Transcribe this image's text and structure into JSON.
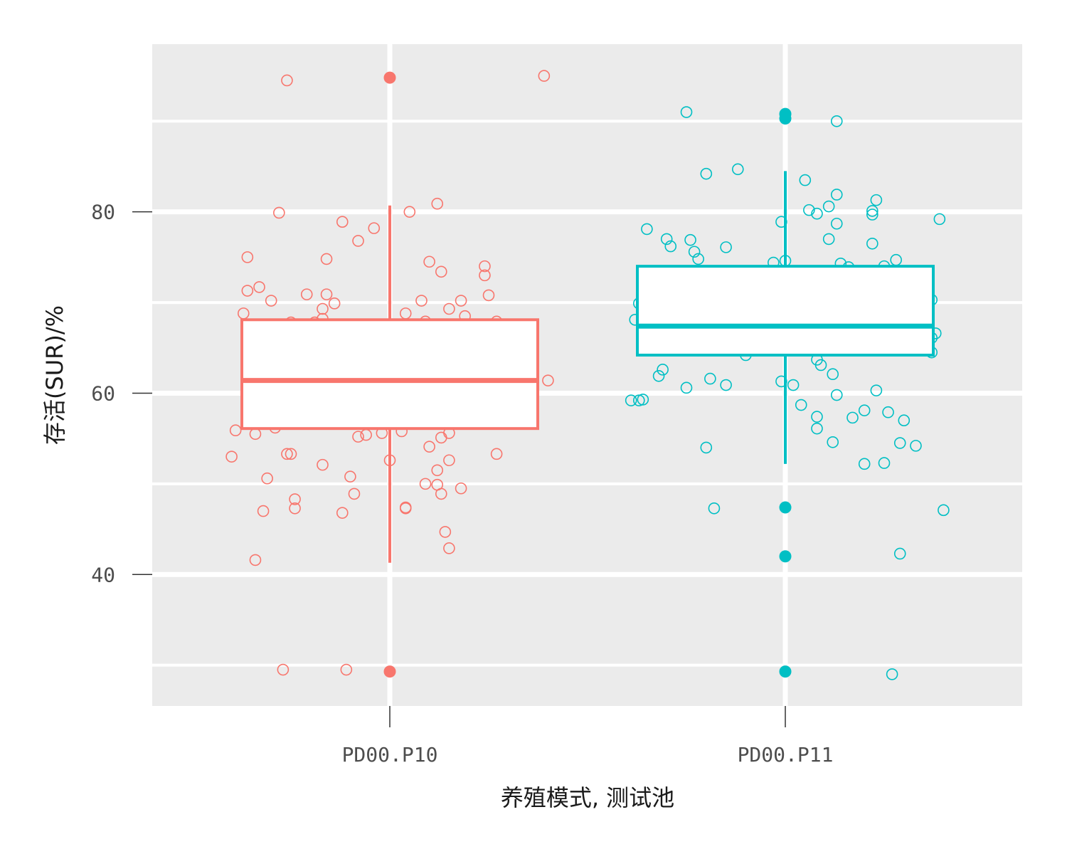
{
  "chart_data": {
    "type": "box",
    "xlabel": "养殖模式, 测试池",
    "ylabel": "存活(SUR)/%",
    "categories": [
      "PD00.P10",
      "PD00.P11"
    ],
    "ylim": [
      25.5,
      98.5
    ],
    "yticks": [
      40,
      60,
      80
    ],
    "grid": true,
    "series": [
      {
        "category": "PD00.P10",
        "color": "#F8766D",
        "box": {
          "whisker_low": 41.3,
          "q1": 56.1,
          "median": 61.4,
          "q3": 68.1,
          "whisker_high": 80.7
        },
        "outliers": [
          94.8,
          29.3
        ],
        "points": [
          [
            -0.26,
            94.5
          ],
          [
            -0.11,
            29.5
          ],
          [
            -0.28,
            79.9
          ],
          [
            0.05,
            80.0
          ],
          [
            0.12,
            80.9
          ],
          [
            -0.04,
            78.2
          ],
          [
            -0.12,
            78.9
          ],
          [
            -0.08,
            76.8
          ],
          [
            -0.36,
            75.0
          ],
          [
            -0.16,
            74.8
          ],
          [
            0.13,
            73.4
          ],
          [
            0.24,
            74.0
          ],
          [
            0.24,
            73.0
          ],
          [
            0.1,
            74.5
          ],
          [
            0.25,
            70.8
          ],
          [
            -0.3,
            70.2
          ],
          [
            -0.36,
            71.3
          ],
          [
            -0.33,
            71.7
          ],
          [
            -0.21,
            70.9
          ],
          [
            -0.16,
            70.9
          ],
          [
            0.08,
            70.2
          ],
          [
            -0.14,
            69.9
          ],
          [
            0.18,
            70.2
          ],
          [
            0.15,
            69.3
          ],
          [
            -0.37,
            68.8
          ],
          [
            -0.25,
            67.8
          ],
          [
            -0.17,
            68.2
          ],
          [
            -0.17,
            69.3
          ],
          [
            -0.19,
            67.8
          ],
          [
            0.09,
            67.9
          ],
          [
            0.04,
            68.8
          ],
          [
            0.19,
            68.5
          ],
          [
            0.14,
            67.0
          ],
          [
            0.15,
            67.2
          ],
          [
            0.27,
            67.9
          ],
          [
            -0.33,
            65.2
          ],
          [
            -0.34,
            65.1
          ],
          [
            -0.3,
            65.9
          ],
          [
            -0.18,
            66.9
          ],
          [
            -0.2,
            66.2
          ],
          [
            -0.13,
            66.0
          ],
          [
            0.06,
            65.6
          ],
          [
            0.24,
            66.1
          ],
          [
            0.16,
            64.6
          ],
          [
            -0.34,
            64.0
          ],
          [
            -0.29,
            63.4
          ],
          [
            -0.24,
            63.6
          ],
          [
            -0.21,
            63.6
          ],
          [
            -0.17,
            65.0
          ],
          [
            -0.09,
            64.6
          ],
          [
            -0.04,
            64.0
          ],
          [
            -0.01,
            64.1
          ],
          [
            0.11,
            63.9
          ],
          [
            0.07,
            63.9
          ],
          [
            0.1,
            62.8
          ],
          [
            0.18,
            63.4
          ],
          [
            0.13,
            62.5
          ],
          [
            -0.34,
            62.6
          ],
          [
            -0.25,
            61.9
          ],
          [
            -0.2,
            62.1
          ],
          [
            -0.14,
            60.6
          ],
          [
            -0.13,
            60.2
          ],
          [
            -0.08,
            60.8
          ],
          [
            -0.03,
            60.7
          ],
          [
            0.05,
            60.6
          ],
          [
            0.06,
            60.4
          ],
          [
            0.12,
            59.4
          ],
          [
            0.26,
            61.3
          ],
          [
            0.27,
            61.1
          ],
          [
            -0.26,
            57.8
          ],
          [
            -0.23,
            58.1
          ],
          [
            -0.18,
            58.7
          ],
          [
            -0.16,
            58.3
          ],
          [
            -0.16,
            57.8
          ],
          [
            -0.12,
            57.1
          ],
          [
            -0.08,
            58.7
          ],
          [
            -0.05,
            59.4
          ],
          [
            -0.01,
            58.4
          ],
          [
            0.03,
            57.6
          ],
          [
            0.08,
            58.4
          ],
          [
            0.14,
            59.8
          ],
          [
            0.14,
            59.3
          ],
          [
            0.21,
            59.3
          ],
          [
            0.27,
            57.3
          ],
          [
            -0.39,
            55.9
          ],
          [
            -0.34,
            55.5
          ],
          [
            -0.29,
            56.2
          ],
          [
            -0.08,
            55.2
          ],
          [
            -0.06,
            55.4
          ],
          [
            -0.02,
            55.6
          ],
          [
            0.03,
            55.8
          ],
          [
            0.13,
            55.1
          ],
          [
            0.15,
            55.6
          ],
          [
            0.12,
            57.3
          ],
          [
            0.17,
            57.5
          ],
          [
            -0.4,
            53.0
          ],
          [
            -0.26,
            53.3
          ],
          [
            -0.25,
            53.3
          ],
          [
            -0.17,
            52.1
          ],
          [
            0.0,
            52.6
          ],
          [
            0.1,
            54.1
          ],
          [
            0.12,
            51.5
          ],
          [
            0.27,
            53.3
          ],
          [
            0.15,
            52.6
          ],
          [
            -0.31,
            50.6
          ],
          [
            -0.1,
            50.8
          ],
          [
            -0.09,
            48.9
          ],
          [
            -0.24,
            48.3
          ],
          [
            -0.24,
            47.3
          ],
          [
            -0.32,
            47.0
          ],
          [
            -0.12,
            46.8
          ],
          [
            0.04,
            47.4
          ],
          [
            0.04,
            47.3
          ],
          [
            0.09,
            50.0
          ],
          [
            0.12,
            49.9
          ],
          [
            0.13,
            48.9
          ],
          [
            0.18,
            49.5
          ],
          [
            0.14,
            44.7
          ],
          [
            0.15,
            42.9
          ],
          [
            -0.34,
            41.6
          ],
          [
            -0.27,
            29.5
          ],
          [
            0.39,
            95.0
          ],
          [
            0.4,
            61.4
          ]
        ]
      },
      {
        "category": "PD00.P11",
        "color": "#00BFC4",
        "box": {
          "whisker_low": 52.2,
          "q1": 64.2,
          "median": 67.4,
          "q3": 74.0,
          "whisker_high": 84.5
        },
        "outliers": [
          90.8,
          90.3,
          47.4,
          42.0,
          29.3
        ],
        "points": [
          [
            -0.25,
            91.0
          ],
          [
            0.13,
            90.0
          ],
          [
            -0.2,
            84.2
          ],
          [
            -0.12,
            84.7
          ],
          [
            0.05,
            83.5
          ],
          [
            0.13,
            81.9
          ],
          [
            0.23,
            81.3
          ],
          [
            0.06,
            80.2
          ],
          [
            0.08,
            79.8
          ],
          [
            0.11,
            80.6
          ],
          [
            0.22,
            80.1
          ],
          [
            0.22,
            79.7
          ],
          [
            0.39,
            79.2
          ],
          [
            -0.35,
            78.1
          ],
          [
            -0.01,
            78.9
          ],
          [
            0.13,
            78.7
          ],
          [
            -0.3,
            77.0
          ],
          [
            -0.29,
            76.2
          ],
          [
            -0.24,
            76.9
          ],
          [
            -0.15,
            76.1
          ],
          [
            -0.23,
            75.6
          ],
          [
            -0.22,
            74.8
          ],
          [
            0.0,
            74.6
          ],
          [
            -0.03,
            74.4
          ],
          [
            0.11,
            77.0
          ],
          [
            0.14,
            74.3
          ],
          [
            0.16,
            73.9
          ],
          [
            0.22,
            76.5
          ],
          [
            0.28,
            74.7
          ],
          [
            0.25,
            74.0
          ],
          [
            -0.34,
            72.8
          ],
          [
            -0.22,
            72.0
          ],
          [
            -0.1,
            72.9
          ],
          [
            -0.02,
            71.1
          ],
          [
            0.12,
            71.4
          ],
          [
            0.15,
            71.4
          ],
          [
            0.15,
            70.2
          ],
          [
            0.17,
            71.9
          ],
          [
            0.21,
            71.4
          ],
          [
            0.27,
            73.5
          ],
          [
            0.37,
            70.3
          ],
          [
            -0.26,
            70.7
          ],
          [
            -0.28,
            69.8
          ],
          [
            -0.24,
            69.4
          ],
          [
            -0.15,
            69.6
          ],
          [
            -0.13,
            69.3
          ],
          [
            -0.08,
            70.2
          ],
          [
            -0.06,
            69.6
          ],
          [
            0.09,
            69.3
          ],
          [
            0.12,
            70.3
          ],
          [
            0.23,
            69.1
          ],
          [
            -0.37,
            69.9
          ],
          [
            -0.38,
            68.1
          ],
          [
            -0.35,
            68.0
          ],
          [
            -0.16,
            67.3
          ],
          [
            -0.2,
            67.0
          ],
          [
            -0.17,
            66.8
          ],
          [
            -0.12,
            66.6
          ],
          [
            0.09,
            67.7
          ],
          [
            0.12,
            68.5
          ],
          [
            0.19,
            67.3
          ],
          [
            0.21,
            67.6
          ],
          [
            0.24,
            67.6
          ],
          [
            0.24,
            68.3
          ],
          [
            0.38,
            66.6
          ],
          [
            -0.29,
            66.6
          ],
          [
            -0.28,
            66.3
          ],
          [
            -0.24,
            65.5
          ],
          [
            -0.24,
            64.8
          ],
          [
            -0.22,
            64.7
          ],
          [
            -0.2,
            65.4
          ],
          [
            -0.1,
            64.2
          ],
          [
            0.0,
            66.2
          ],
          [
            0.03,
            66.6
          ],
          [
            0.03,
            66.2
          ],
          [
            0.06,
            65.2
          ],
          [
            0.08,
            63.7
          ],
          [
            0.09,
            63.1
          ],
          [
            0.11,
            65.3
          ],
          [
            0.18,
            65.6
          ],
          [
            0.2,
            64.8
          ],
          [
            0.28,
            66.0
          ],
          [
            0.29,
            65.1
          ],
          [
            0.31,
            65.7
          ],
          [
            0.37,
            66.1
          ],
          [
            0.37,
            64.5
          ],
          [
            -0.31,
            62.6
          ],
          [
            -0.32,
            61.9
          ],
          [
            -0.25,
            60.6
          ],
          [
            -0.19,
            61.6
          ],
          [
            -0.15,
            60.9
          ],
          [
            -0.01,
            61.3
          ],
          [
            0.02,
            60.9
          ],
          [
            0.04,
            58.7
          ],
          [
            0.12,
            62.1
          ],
          [
            0.13,
            59.8
          ],
          [
            0.2,
            58.1
          ],
          [
            0.23,
            60.3
          ],
          [
            0.26,
            57.9
          ],
          [
            -0.39,
            59.2
          ],
          [
            -0.37,
            59.2
          ],
          [
            -0.36,
            59.3
          ],
          [
            0.08,
            57.4
          ],
          [
            0.08,
            56.1
          ],
          [
            0.12,
            54.6
          ],
          [
            0.17,
            57.3
          ],
          [
            0.3,
            57.0
          ],
          [
            0.29,
            54.5
          ],
          [
            0.33,
            54.2
          ],
          [
            -0.2,
            54.0
          ],
          [
            0.2,
            52.2
          ],
          [
            0.25,
            52.3
          ],
          [
            -0.18,
            47.3
          ],
          [
            0.4,
            47.1
          ],
          [
            0.29,
            42.3
          ],
          [
            0.27,
            29.0
          ]
        ]
      }
    ]
  }
}
